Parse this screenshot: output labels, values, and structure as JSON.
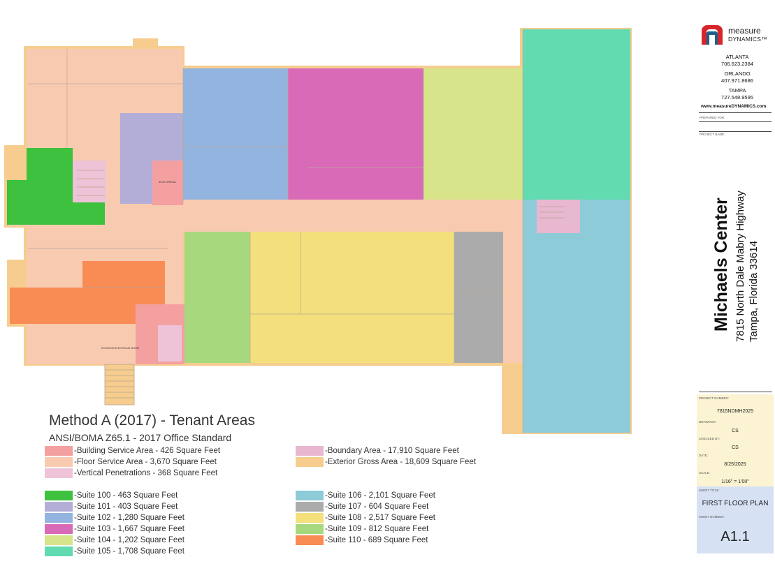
{
  "legend": {
    "title": "Method A (2017) - Tenant Areas",
    "subtitle": "ANSI/BOMA Z65.1 - 2017 Office Standard",
    "areas": [
      {
        "label": "-Building Service Area  - 426 Square Feet",
        "color": "#f4a0a0"
      },
      {
        "label": "-Floor Service Area  - 3,670 Square Feet",
        "color": "#f8cbb0"
      },
      {
        "label": "-Vertical Penetrations  - 368 Square Feet",
        "color": "#eec3d7"
      },
      {
        "label": "-Boundary Area  - 17,910 Square Feet",
        "color": "#e8b7d0"
      },
      {
        "label": "-Exterior Gross Area  - 18,609 Square Feet",
        "color": "#f6cd8f"
      }
    ],
    "suites": [
      {
        "label": "-Suite 100 - 463 Square Feet",
        "color": "#3ec13f"
      },
      {
        "label": "-Suite 101 - 403 Square Feet",
        "color": "#b3aed8"
      },
      {
        "label": "-Suite 102 - 1,280 Square Feet",
        "color": "#92b4de"
      },
      {
        "label": "-Suite 103 - 1,667 Square Feet",
        "color": "#d96ab8"
      },
      {
        "label": "-Suite 104 - 1,202 Square Feet",
        "color": "#d8e48a"
      },
      {
        "label": "-Suite 105 - 1,708 Square Feet",
        "color": "#62dbb0"
      },
      {
        "label": "-Suite 106 - 2,101 Square Feet",
        "color": "#8ecbd8"
      },
      {
        "label": "-Suite 107 - 604 Square Feet",
        "color": "#ababab"
      },
      {
        "label": "-Suite 108 - 2,517 Square Feet",
        "color": "#f3e07c"
      },
      {
        "label": "-Suite 109 - 812 Square Feet",
        "color": "#a8d87e"
      },
      {
        "label": "-Suite 110 - 689 Square Feet",
        "color": "#f98c55"
      }
    ]
  },
  "plan_labels": {
    "electrical": "ELECTRICAL",
    "elevator": "ELEVATOR ELECTRICAL ROOM"
  },
  "titleblock": {
    "brand_top": "measure",
    "brand_bottom": "DYNAMICS™",
    "offices": [
      {
        "city": "ATLANTA",
        "phone": "706.623.2384"
      },
      {
        "city": "ORLANDO",
        "phone": "407.971.8686"
      },
      {
        "city": "TAMPA",
        "phone": "727.548.9595"
      }
    ],
    "website": "www.measureDYNAMICS.com",
    "prepared_for_label": "PREPARED FOR:",
    "project_name_label": "PROJECT NAME:",
    "project_title": "Michaels Center",
    "address_line1": "7815 North Dale Mabry Highway",
    "address_line2": "Tampa, Florida 33614",
    "project_number_label": "PROJECT NUMBER:",
    "project_number": "7815NDMH2025",
    "drawn_by_label": "DRAWN BY:",
    "drawn_by": "CS",
    "checked_by_label": "CHECKED BY:",
    "checked_by": "CS",
    "date_label": "DATE:",
    "date": "8/25/2025",
    "scale_label": "SCALE:",
    "scale": "1/16\" = 1'00\"",
    "sheet_title_label": "SHEET TITLE:",
    "sheet_title": "FIRST FLOOR PLAN",
    "sheet_number_label": "SHEET NUMBER:",
    "sheet_number": "A1.1"
  },
  "colors": {
    "exterior": "#f6cd8f",
    "floor_service": "#f8cbb0",
    "building_service": "#f4a0a0",
    "vertical_penetration": "#eec3d7"
  }
}
